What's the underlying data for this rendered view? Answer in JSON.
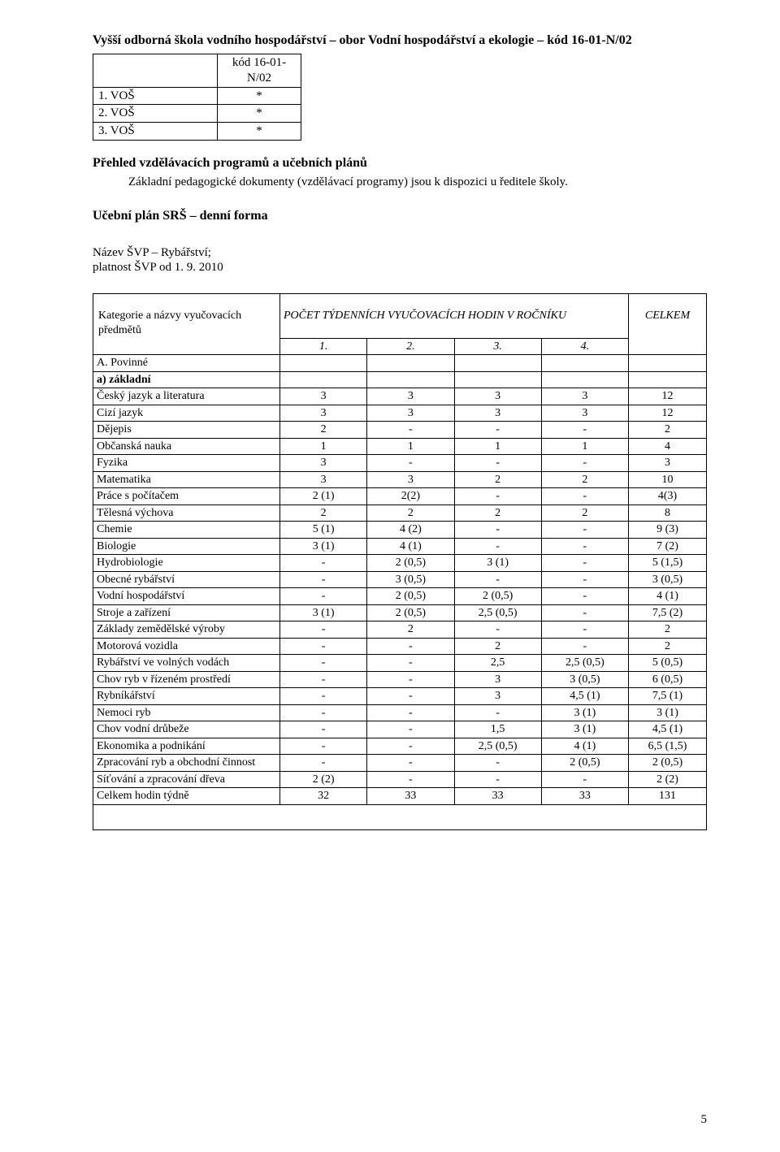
{
  "heading_line1": "Vyšší odborná škola vodního hospodářství – obor Vodní hospodářství a ekologie – kód 16-01-N/02",
  "small_table": {
    "header": {
      "label": "",
      "code": "kód 16-01-N/02"
    },
    "rows": [
      {
        "label": "1. VOŠ",
        "code": "*"
      },
      {
        "label": "2. VOŠ",
        "code": "*"
      },
      {
        "label": "3. VOŠ",
        "code": "*"
      }
    ]
  },
  "overview_title": "Přehled vzdělávacích programů a učebních plánů",
  "overview_text": "Základní pedagogické dokumenty (vzdělávací programy) jsou k dispozici u ředitele školy.",
  "plan_title": "Učební plán SRŠ – denní forma",
  "svp_name": "Název ŠVP – Rybářství;",
  "svp_valid": "platnost ŠVP od 1. 9. 2010",
  "curriculum": {
    "header_subject": "Kategorie a názvy vyučovacích předmětů",
    "header_count": "POČET TÝDENNÍCH VYUČOVACÍCH HODIN V ROČNÍKU",
    "header_total": "CELKEM",
    "year_labels": [
      "1.",
      "2.",
      "3.",
      "4."
    ],
    "section_a": "A. Povinné",
    "section_a_sub": "a) základní",
    "rows": [
      {
        "name": "Český jazyk a literatura",
        "v": [
          "3",
          "3",
          "3",
          "3"
        ],
        "t": "12"
      },
      {
        "name": "Cizí jazyk",
        "v": [
          "3",
          "3",
          "3",
          "3"
        ],
        "t": "12"
      },
      {
        "name": "Dějepis",
        "v": [
          "2",
          "-",
          "-",
          "-"
        ],
        "t": "2"
      },
      {
        "name": "Občanská nauka",
        "v": [
          "1",
          "1",
          "1",
          "1"
        ],
        "t": "4"
      },
      {
        "name": "Fyzika",
        "v": [
          "3",
          "-",
          "-",
          "-"
        ],
        "t": "3"
      },
      {
        "name": "Matematika",
        "v": [
          "3",
          "3",
          "2",
          "2"
        ],
        "t": "10"
      },
      {
        "name": "Práce s počítačem",
        "v": [
          "2 (1)",
          "2(2)",
          "-",
          "-"
        ],
        "t": "4(3)"
      },
      {
        "name": "Tělesná výchova",
        "v": [
          "2",
          "2",
          "2",
          "2"
        ],
        "t": "8"
      },
      {
        "name": "Chemie",
        "v": [
          "5 (1)",
          "4 (2)",
          "-",
          "-"
        ],
        "t": "9 (3)"
      },
      {
        "name": "Biologie",
        "v": [
          "3 (1)",
          "4 (1)",
          "-",
          "-"
        ],
        "t": "7 (2)"
      },
      {
        "name": "Hydrobiologie",
        "v": [
          "-",
          "2 (0,5)",
          "3 (1)",
          "-"
        ],
        "t": "5 (1,5)"
      },
      {
        "name": "Obecné rybářství",
        "v": [
          "-",
          "3 (0,5)",
          "-",
          "-"
        ],
        "t": "3 (0,5)"
      },
      {
        "name": "Vodní hospodářství",
        "v": [
          "-",
          "2 (0,5)",
          "2 (0,5)",
          "-"
        ],
        "t": "4 (1)"
      },
      {
        "name": "Stroje a zařízení",
        "v": [
          "3 (1)",
          "2 (0,5)",
          "2,5 (0,5)",
          "-"
        ],
        "t": "7,5 (2)"
      },
      {
        "name": "Základy zemědělské výroby",
        "v": [
          "-",
          "2",
          "-",
          "-"
        ],
        "t": "2"
      },
      {
        "name": "Motorová vozidla",
        "v": [
          "-",
          "-",
          "2",
          "-"
        ],
        "t": "2"
      },
      {
        "name": "Rybářství ve volných vodách",
        "v": [
          "-",
          "-",
          "2,5",
          "2,5 (0,5)"
        ],
        "t": "5 (0,5)"
      },
      {
        "name": "Chov ryb v řízeném prostředí",
        "v": [
          "-",
          "-",
          "3",
          "3 (0,5)"
        ],
        "t": "6 (0,5)"
      },
      {
        "name": "Rybníkářství",
        "v": [
          "-",
          "-",
          "3",
          "4,5 (1)"
        ],
        "t": "7,5 (1)"
      },
      {
        "name": "Nemoci ryb",
        "v": [
          "-",
          "-",
          "-",
          "3 (1)"
        ],
        "t": "3 (1)"
      },
      {
        "name": "Chov vodní drůbeže",
        "v": [
          "-",
          "-",
          "1,5",
          "3 (1)"
        ],
        "t": "4,5 (1)"
      },
      {
        "name": "Ekonomika a podnikání",
        "v": [
          "-",
          "-",
          "2,5 (0,5)",
          "4 (1)"
        ],
        "t": "6,5 (1,5)"
      },
      {
        "name": "Zpracování ryb a obchodní činnost",
        "v": [
          "-",
          "-",
          "-",
          "2 (0,5)"
        ],
        "t": "2 (0,5)"
      },
      {
        "name": "Síťování a zpracování dřeva",
        "v": [
          "2 (2)",
          "-",
          "-",
          "-"
        ],
        "t": "2 (2)"
      },
      {
        "name": "Celkem hodin týdně",
        "v": [
          "32",
          "33",
          "33",
          "33"
        ],
        "t": "131"
      }
    ]
  },
  "page_number": "5"
}
